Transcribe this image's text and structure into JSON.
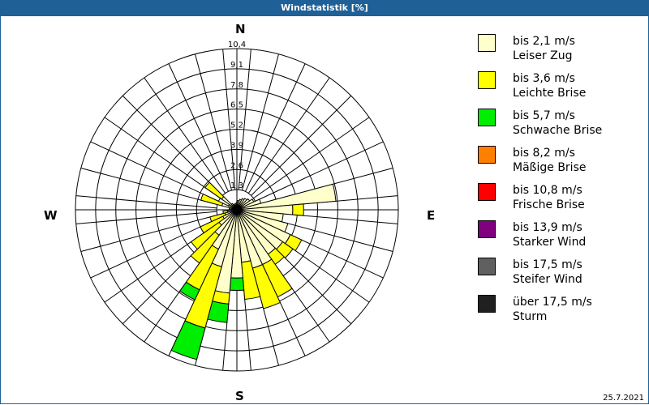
{
  "title": "Windstatistik [%]",
  "date": "25.7.2021",
  "compass": {
    "n": "N",
    "e": "E",
    "s": "S",
    "w": "W"
  },
  "legend": [
    {
      "range": "bis 2,1 m/s",
      "name": "Leiser Zug",
      "color": "#ffffcc"
    },
    {
      "range": "bis 3,6 m/s",
      "name": "Leichte Brise",
      "color": "#ffff00"
    },
    {
      "range": "bis 5,7 m/s",
      "name": "Schwache Brise",
      "color": "#00ee00"
    },
    {
      "range": "bis 8,2 m/s",
      "name": "Mäßige Brise",
      "color": "#ff8000"
    },
    {
      "range": "bis 10,8 m/s",
      "name": "Frische Brise",
      "color": "#ff0000"
    },
    {
      "range": "bis 13,9 m/s",
      "name": "Starker Wind",
      "color": "#800080"
    },
    {
      "range": "bis 17,5 m/s",
      "name": "Steifer Wind",
      "color": "#606060"
    },
    {
      "range": "über 17,5 m/s",
      "name": "Sturm",
      "color": "#202020"
    }
  ],
  "chart_data": {
    "type": "wind-rose",
    "title": "Windstatistik [%]",
    "unit": "%",
    "ring_labels": [
      "1,3",
      "2,6",
      "3,9",
      "5,2",
      "6,5",
      "7,8",
      "9,1",
      "10,4"
    ],
    "ring_values": [
      1.3,
      2.6,
      3.9,
      5.2,
      6.5,
      7.8,
      9.1,
      10.4
    ],
    "rmax": 10.4,
    "sector_width_deg": 10,
    "classes": [
      "Leiser Zug",
      "Leichte Brise",
      "Schwache Brise"
    ],
    "note": "cumulative % per direction: [cream_end, yellow_end, green_end]",
    "sectors": [
      {
        "dir": 0,
        "cum": [
          0.5,
          0.5,
          0.5
        ]
      },
      {
        "dir": 10,
        "cum": [
          0.6,
          0.6,
          0.6
        ]
      },
      {
        "dir": 20,
        "cum": [
          0.7,
          0.7,
          0.7
        ]
      },
      {
        "dir": 30,
        "cum": [
          0.8,
          0.8,
          0.8
        ]
      },
      {
        "dir": 40,
        "cum": [
          0.9,
          0.9,
          0.9
        ]
      },
      {
        "dir": 50,
        "cum": [
          1.0,
          1.0,
          1.0
        ]
      },
      {
        "dir": 60,
        "cum": [
          1.2,
          1.2,
          1.2
        ]
      },
      {
        "dir": 70,
        "cum": [
          1.6,
          1.6,
          1.6
        ]
      },
      {
        "dir": 80,
        "cum": [
          6.4,
          6.4,
          6.4
        ]
      },
      {
        "dir": 90,
        "cum": [
          3.6,
          4.3,
          4.3
        ]
      },
      {
        "dir": 100,
        "cum": [
          3.0,
          3.0,
          3.0
        ]
      },
      {
        "dir": 110,
        "cum": [
          3.4,
          3.4,
          3.4
        ]
      },
      {
        "dir": 120,
        "cum": [
          3.8,
          4.6,
          4.6
        ]
      },
      {
        "dir": 130,
        "cum": [
          3.6,
          4.4,
          4.4
        ]
      },
      {
        "dir": 140,
        "cum": [
          3.5,
          4.3,
          4.3
        ]
      },
      {
        "dir": 150,
        "cum": [
          3.9,
          6.2,
          6.2
        ]
      },
      {
        "dir": 160,
        "cum": [
          3.9,
          6.6,
          6.6
        ]
      },
      {
        "dir": 170,
        "cum": [
          3.4,
          5.8,
          5.8
        ]
      },
      {
        "dir": 180,
        "cum": [
          4.4,
          4.4,
          5.2
        ]
      },
      {
        "dir": 190,
        "cum": [
          5.4,
          6.1,
          7.3
        ]
      },
      {
        "dir": 200,
        "cum": [
          3.8,
          7.9,
          10.0
        ]
      },
      {
        "dir": 210,
        "cum": [
          2.8,
          5.7,
          6.4
        ]
      },
      {
        "dir": 220,
        "cum": [
          2.0,
          4.2,
          4.2
        ]
      },
      {
        "dir": 230,
        "cum": [
          1.4,
          3.6,
          3.6
        ]
      },
      {
        "dir": 240,
        "cum": [
          1.0,
          2.6,
          2.6
        ]
      },
      {
        "dir": 250,
        "cum": [
          0.8,
          1.8,
          1.8
        ]
      },
      {
        "dir": 260,
        "cum": [
          0.6,
          0.9,
          0.9
        ]
      },
      {
        "dir": 270,
        "cum": [
          0.5,
          0.5,
          0.5
        ]
      },
      {
        "dir": 280,
        "cum": [
          0.5,
          0.5,
          0.5
        ]
      },
      {
        "dir": 290,
        "cum": [
          1.0,
          2.4,
          2.4
        ]
      },
      {
        "dir": 300,
        "cum": [
          0.6,
          0.6,
          0.6
        ]
      },
      {
        "dir": 310,
        "cum": [
          1.2,
          2.5,
          2.5
        ]
      },
      {
        "dir": 320,
        "cum": [
          0.5,
          0.5,
          0.5
        ]
      },
      {
        "dir": 330,
        "cum": [
          0.4,
          0.4,
          0.4
        ]
      },
      {
        "dir": 340,
        "cum": [
          0.4,
          0.4,
          0.4
        ]
      },
      {
        "dir": 350,
        "cum": [
          0.4,
          0.4,
          0.4
        ]
      }
    ],
    "legend_position": "right"
  }
}
